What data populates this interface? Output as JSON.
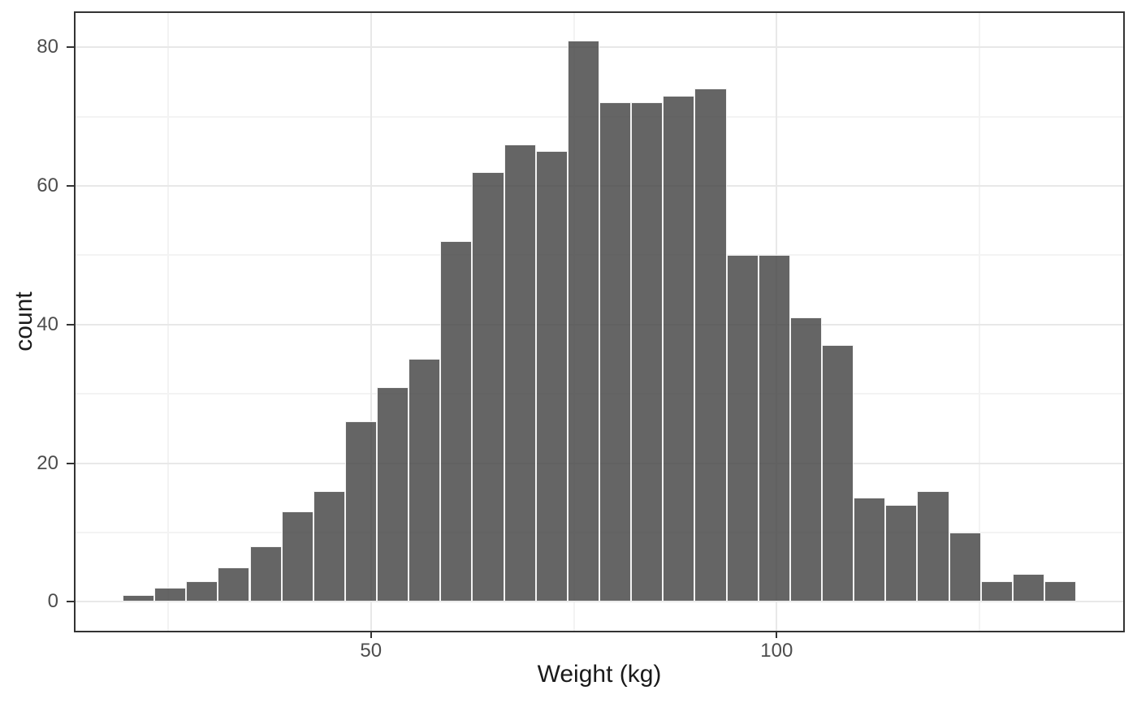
{
  "chart_data": {
    "type": "bar",
    "subtype": "histogram",
    "title": "",
    "xlabel": "Weight (kg)",
    "ylabel": "count",
    "bins": {
      "start": 19.4,
      "width": 3.917,
      "n_bins": 30
    },
    "counts": [
      1,
      2,
      3,
      5,
      8,
      13,
      16,
      26,
      31,
      35,
      52,
      62,
      66,
      65,
      81,
      72,
      72,
      73,
      74,
      50,
      50,
      41,
      37,
      15,
      14,
      16,
      10,
      3,
      4,
      3
    ],
    "total_n": 1000,
    "x_ticks": [
      50,
      100
    ],
    "x_minor_gridlines": [
      25,
      75,
      125
    ],
    "y_ticks": [
      0,
      20,
      40,
      60,
      80
    ],
    "y_minor_gridlines": [
      10,
      30,
      50,
      70
    ],
    "x_domain": [
      13.5,
      142.8
    ],
    "y_domain": [
      -4.29,
      85.05
    ],
    "grid": true,
    "legend": "none",
    "colors": {
      "bar_fill": "#666666",
      "bar_stroke": "#ffffff",
      "grid_major": "#e8e8e8",
      "grid_minor": "#f3f3f3",
      "panel_border": "#333333",
      "tick_mark": "#333333",
      "tick_label_text": "#4d4d4d",
      "axis_title_text": "#1a1a1a",
      "background": "#ffffff"
    }
  }
}
